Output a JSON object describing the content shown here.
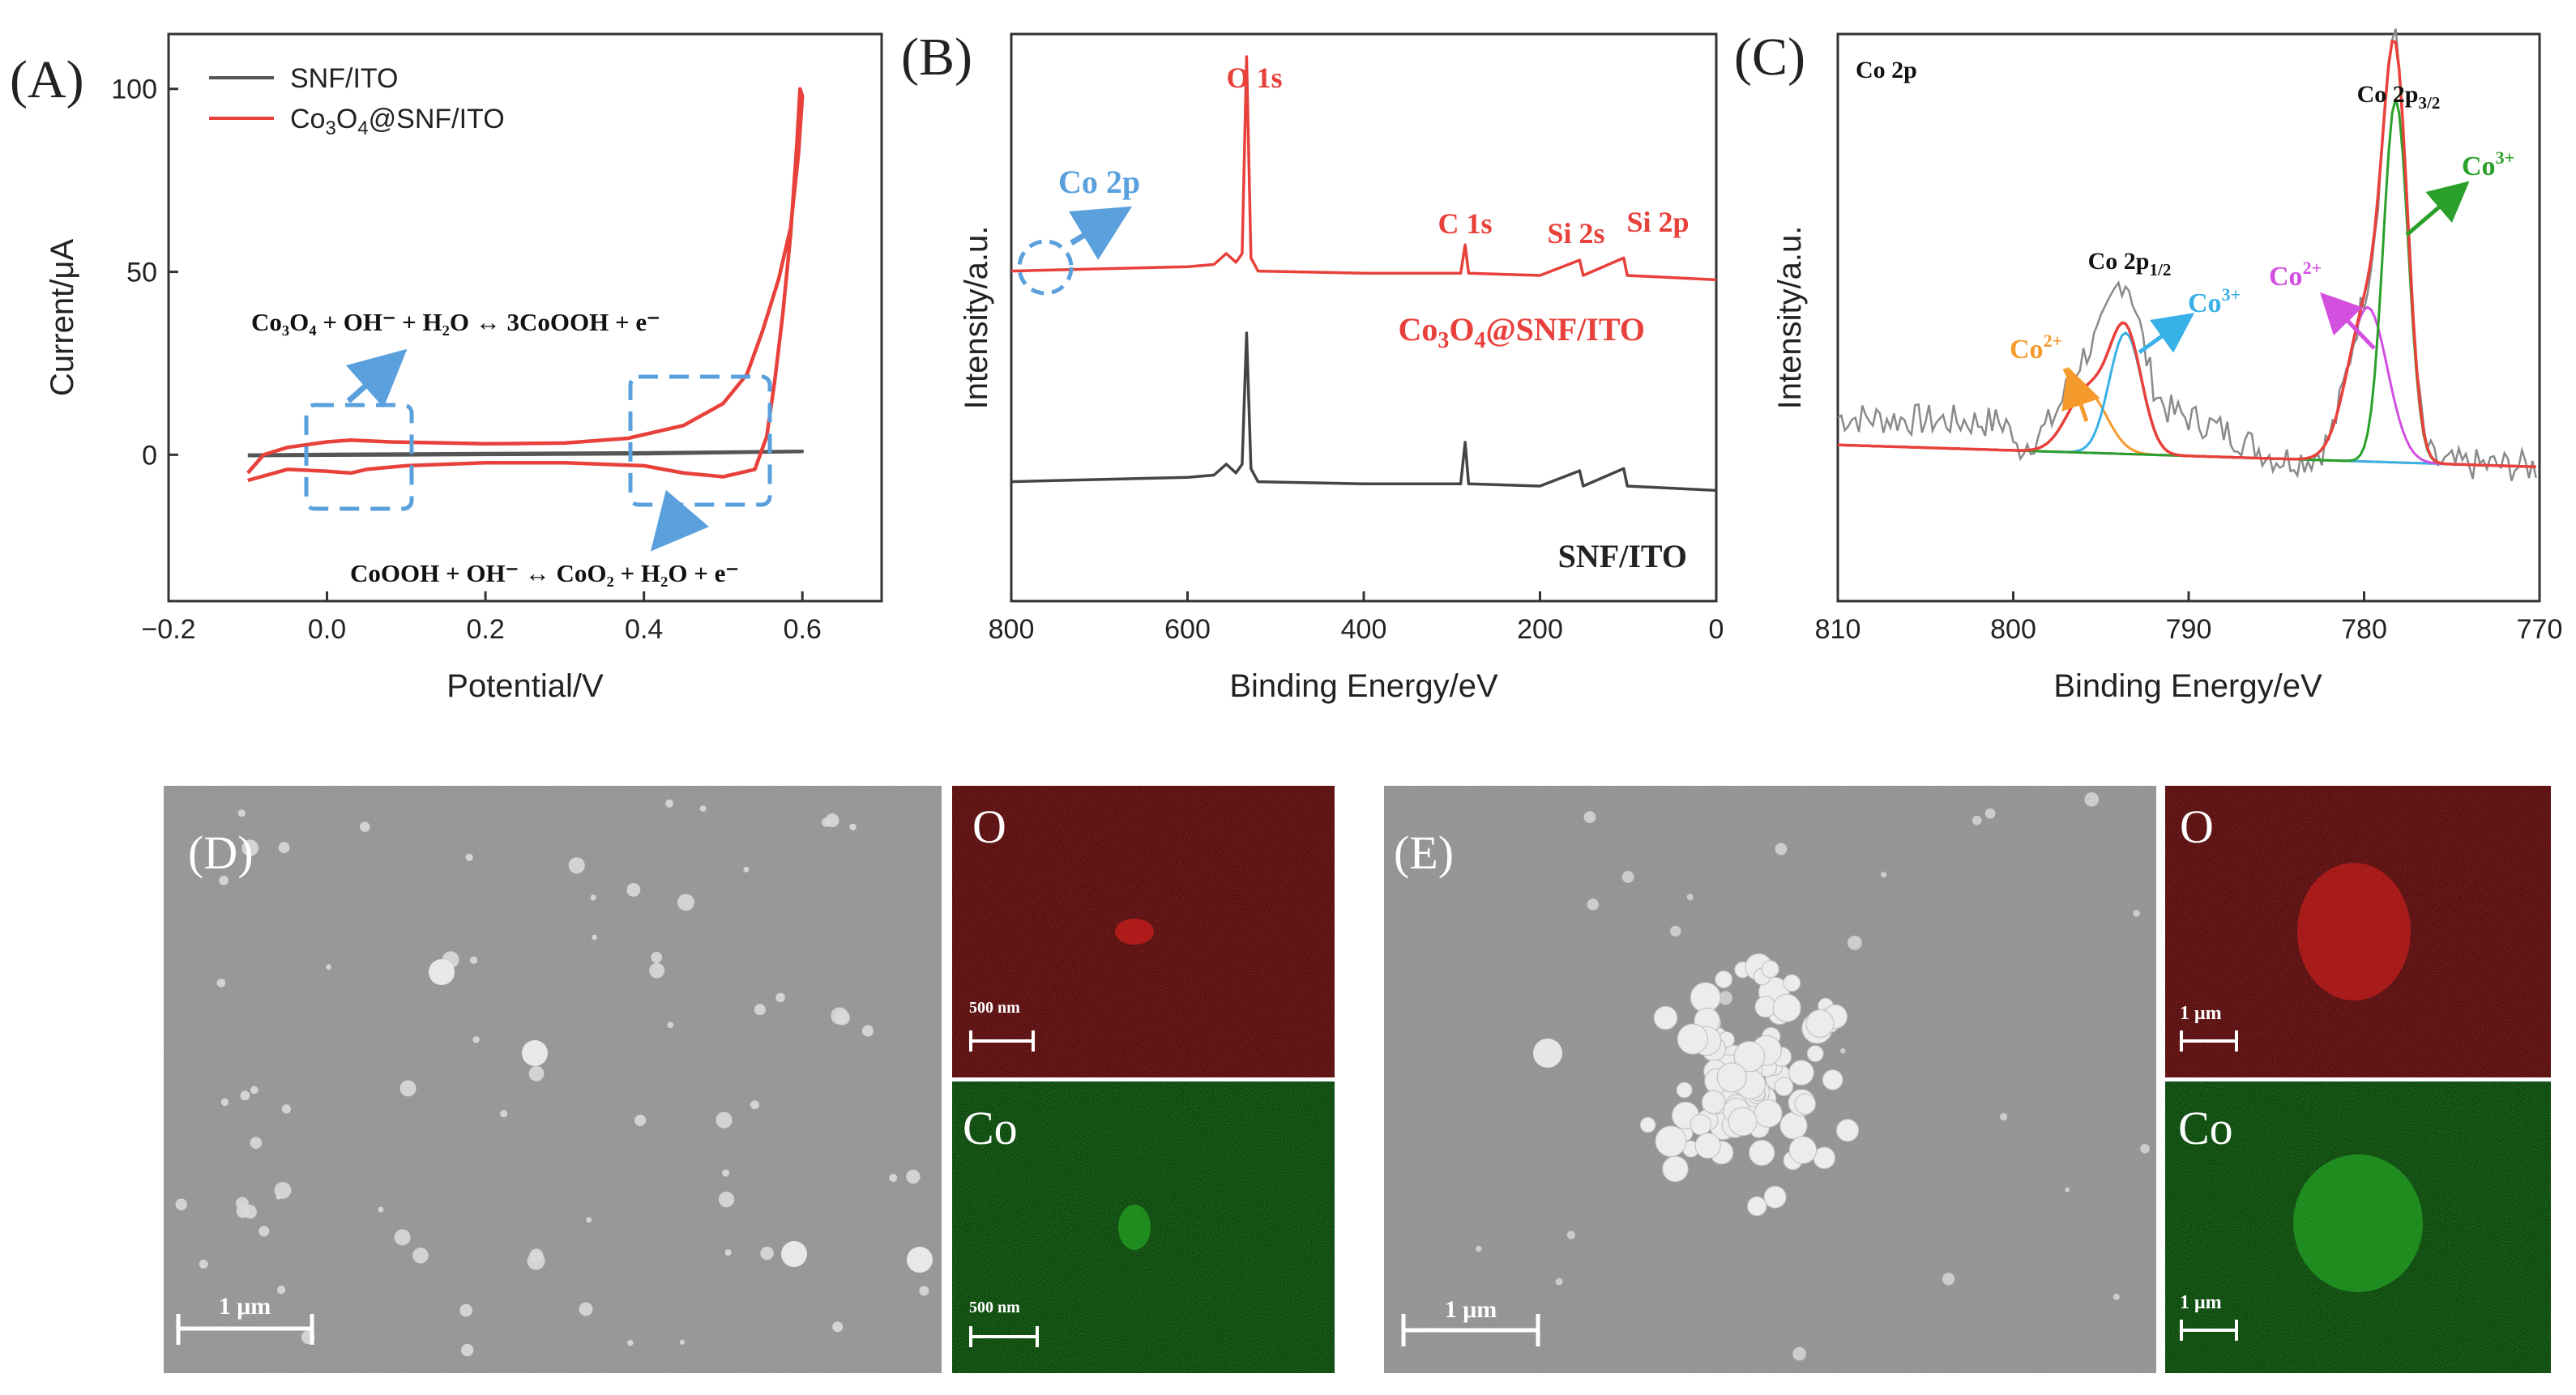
{
  "panels": {
    "A": {
      "label": "(A)"
    },
    "B": {
      "label": "(B)"
    },
    "C": {
      "label": "(C)"
    },
    "D": {
      "label": "(D)"
    },
    "E": {
      "label": "(E)"
    }
  },
  "chart_data": [
    {
      "id": "A",
      "type": "line",
      "xlabel": "Potential/V",
      "ylabel": "Current/μA",
      "xlim": [
        -0.2,
        0.7
      ],
      "ylim": [
        -40,
        115
      ],
      "xticks": [
        "−0.2",
        "0.0",
        "0.2",
        "0.4",
        "0.6"
      ],
      "xtick_values": [
        -0.2,
        0.0,
        0.2,
        0.4,
        0.6
      ],
      "yticks": [
        "0",
        "50",
        "100"
      ],
      "ytick_values": [
        0,
        50,
        100
      ],
      "grid": false,
      "legend_position": "top-left",
      "series": [
        {
          "name": "SNF/ITO",
          "color": "#555555",
          "points": [
            [
              -0.1,
              0.0
            ],
            [
              0.0,
              0.2
            ],
            [
              0.2,
              0.4
            ],
            [
              0.4,
              0.6
            ],
            [
              0.6,
              1.0
            ],
            [
              0.6,
              0.8
            ],
            [
              0.4,
              0.2
            ],
            [
              0.2,
              0.0
            ],
            [
              0.0,
              -0.2
            ],
            [
              -0.1,
              -0.3
            ]
          ]
        },
        {
          "name": "Co₃O₄@SNF/ITO",
          "color": "#e8403a",
          "points": [
            [
              -0.1,
              -5
            ],
            [
              -0.08,
              0
            ],
            [
              -0.05,
              2
            ],
            [
              0.0,
              3.5
            ],
            [
              0.03,
              4
            ],
            [
              0.08,
              3.5
            ],
            [
              0.2,
              3
            ],
            [
              0.3,
              3.2
            ],
            [
              0.38,
              4.5
            ],
            [
              0.45,
              8
            ],
            [
              0.5,
              14
            ],
            [
              0.53,
              22
            ],
            [
              0.55,
              34
            ],
            [
              0.57,
              48
            ],
            [
              0.585,
              62
            ],
            [
              0.595,
              82
            ],
            [
              0.6,
              98
            ],
            [
              0.597,
              100
            ],
            [
              0.593,
              85
            ],
            [
              0.585,
              60
            ],
            [
              0.575,
              38
            ],
            [
              0.565,
              20
            ],
            [
              0.555,
              5
            ],
            [
              0.54,
              -4
            ],
            [
              0.5,
              -6
            ],
            [
              0.45,
              -5
            ],
            [
              0.4,
              -3
            ],
            [
              0.3,
              -2.2
            ],
            [
              0.2,
              -2.2
            ],
            [
              0.1,
              -3
            ],
            [
              0.05,
              -4
            ],
            [
              0.03,
              -5
            ],
            [
              0.0,
              -4.5
            ],
            [
              -0.05,
              -4
            ],
            [
              -0.1,
              -7
            ]
          ]
        }
      ],
      "annotations": [
        "Co₃O₄ + OH⁻ + H₂O ↔ 3CoOOH + e⁻",
        "CoOOH + OH⁻ ↔ CoO₂ + H₂O + e⁻"
      ]
    },
    {
      "id": "B",
      "type": "line",
      "xlabel": "Binding Energy/eV",
      "ylabel": "Intensity/a.u.",
      "xlim": [
        800,
        0
      ],
      "xticks": [
        "800",
        "600",
        "400",
        "200",
        "0"
      ],
      "xtick_values": [
        800,
        600,
        400,
        200,
        0
      ],
      "grid": false,
      "series": [
        {
          "name": "Co₃O₄@SNF/ITO",
          "color": "#e8403a",
          "offset": 0.62,
          "points": [
            [
              800,
              0.02
            ],
            [
              700,
              0.03
            ],
            [
              600,
              0.04
            ],
            [
              570,
              0.05
            ],
            [
              556,
              0.1
            ],
            [
              545,
              0.06
            ],
            [
              538,
              0.1
            ],
            [
              533,
              1.0
            ],
            [
              528,
              0.08
            ],
            [
              520,
              0.02
            ],
            [
              400,
              0.01
            ],
            [
              290,
              0.01
            ],
            [
              285,
              0.14
            ],
            [
              281,
              0.01
            ],
            [
              200,
              0.0
            ],
            [
              155,
              0.07
            ],
            [
              151,
              0.0
            ],
            [
              105,
              0.08
            ],
            [
              101,
              0.0
            ],
            [
              0,
              -0.02
            ]
          ]
        },
        {
          "name": "SNF/ITO",
          "color": "#444444",
          "offset": 0.0,
          "points": [
            [
              800,
              0.02
            ],
            [
              700,
              0.03
            ],
            [
              600,
              0.04
            ],
            [
              570,
              0.05
            ],
            [
              556,
              0.1
            ],
            [
              545,
              0.06
            ],
            [
              538,
              0.1
            ],
            [
              533,
              0.7
            ],
            [
              528,
              0.08
            ],
            [
              520,
              0.02
            ],
            [
              400,
              0.01
            ],
            [
              290,
              0.01
            ],
            [
              285,
              0.2
            ],
            [
              281,
              0.01
            ],
            [
              200,
              0.0
            ],
            [
              155,
              0.07
            ],
            [
              151,
              0.0
            ],
            [
              105,
              0.08
            ],
            [
              101,
              0.0
            ],
            [
              0,
              -0.02
            ]
          ]
        }
      ],
      "annotations": [
        "O 1s",
        "C 1s",
        "Si 2s",
        "Si 2p",
        "Co 2p"
      ]
    },
    {
      "id": "C",
      "type": "line",
      "title": "Co 2p",
      "xlabel": "Binding Energy/eV",
      "ylabel": "Intensity/a.u.",
      "xlim": [
        810,
        770
      ],
      "xticks": [
        "810",
        "800",
        "790",
        "780",
        "770"
      ],
      "xtick_values": [
        810,
        800,
        790,
        780,
        770
      ],
      "grid": false,
      "series": [
        {
          "name": "raw",
          "color": "#8a8a8a",
          "description_values": "noisy experimental spectrum"
        },
        {
          "name": "envelope",
          "color": "#e8403a"
        },
        {
          "name": "Co²⁺ (2p1/2)",
          "color": "#f59a2c",
          "center": 795.8,
          "height": 0.11
        },
        {
          "name": "Co³⁺ (2p1/2)",
          "color": "#38b0e8",
          "center": 793.6,
          "height": 0.22
        },
        {
          "name": "Co²⁺ (2p3/2)",
          "color": "#d24fe0",
          "center": 779.8,
          "height": 0.28
        },
        {
          "name": "Co³⁺ (2p3/2)",
          "color": "#2aa02a",
          "center": 778.2,
          "height": 0.66
        }
      ],
      "annotations": [
        "Co 2p1/2",
        "Co 2p3/2",
        "Co²⁺",
        "Co³⁺",
        "Co²⁺",
        "Co³⁺"
      ]
    }
  ],
  "labels": {
    "A": {
      "legend_snf": "SNF/ITO",
      "legend_co_main": "Co",
      "legend_co_sub1": "3",
      "legend_co_mid": "O",
      "legend_co_sub2": "4",
      "legend_co_tail": "@SNF/ITO",
      "eq1": "Co₃O₄ + OH⁻ + H₂O ↔ 3CoOOH + e⁻",
      "eq2": "CoOOH + OH⁻ ↔ CoO₂ + H₂O + e⁻"
    },
    "B": {
      "o1s": "O 1s",
      "c1s": "C 1s",
      "si2s": "Si 2s",
      "si2p": "Si 2p",
      "co2p": "Co 2p",
      "sample1_a": "Co",
      "sample1_b": "3",
      "sample1_c": "O",
      "sample1_d": "4",
      "sample1_e": "@SNF/ITO",
      "sample2": "SNF/ITO"
    },
    "C": {
      "title": "Co 2p",
      "p12": "Co 2p",
      "p12_sub": "1/2",
      "p32": "Co 2p",
      "p32_sub": "3/2",
      "co2_1": "Co",
      "co2_1_sup": "2+",
      "co3_1": "Co",
      "co3_1_sup": "3+",
      "co2_2": "Co",
      "co2_2_sup": "2+",
      "co3_2": "Co",
      "co3_2_sup": "3+"
    },
    "D": {
      "scale": "1 μm",
      "o": "O",
      "co": "Co",
      "o_scale": "500 nm",
      "co_scale": "500 nm"
    },
    "E": {
      "scale": "1 μm",
      "o": "O",
      "co": "Co",
      "o_scale": "1 μm",
      "co_scale": "1 μm"
    }
  },
  "colors": {
    "red": "#e8403a",
    "blue": "#5aa0dc",
    "orange": "#f59a2c",
    "cyan": "#38b0e8",
    "magenta": "#d24fe0",
    "green": "#2aa02a",
    "sem_gray": "#9a9a9a",
    "map_red": "#7a0a0a",
    "map_green": "#0a4a0a"
  }
}
